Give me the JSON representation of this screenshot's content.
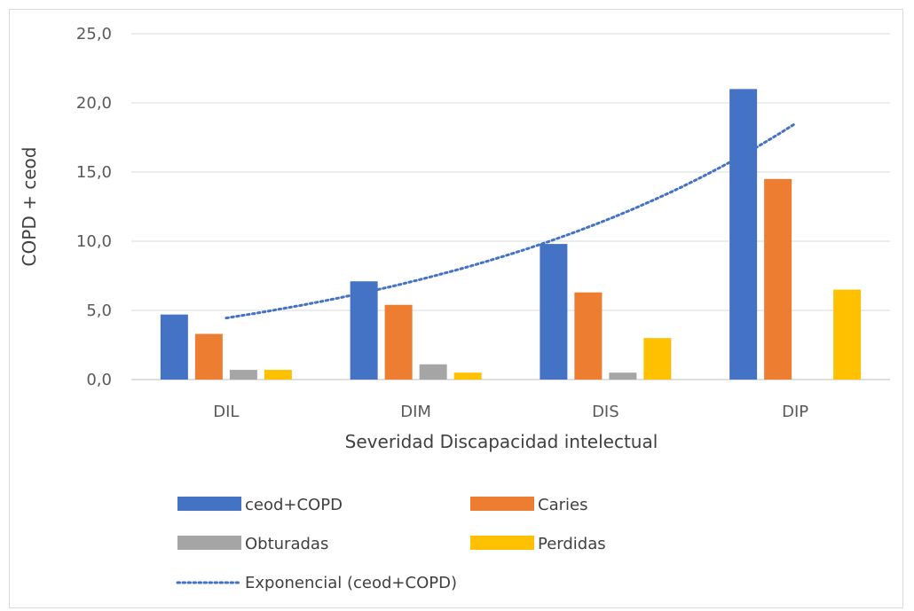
{
  "chart_data": {
    "type": "bar",
    "xlabel": "Severidad Discapacidad intelectual",
    "ylabel": "COPD + ceod",
    "ylim": [
      0,
      25
    ],
    "yticks": [
      "0,0",
      "5,0",
      "10,0",
      "15,0",
      "20,0",
      "25,0"
    ],
    "categories": [
      "DIL",
      "DIM",
      "DIS",
      "DIP"
    ],
    "grid": true,
    "legend_position": "bottom",
    "series": [
      {
        "name": "ceod+COPD",
        "color": "#4472c4",
        "values": [
          4.7,
          7.1,
          9.8,
          21.0
        ]
      },
      {
        "name": "Caries",
        "color": "#ed7d31",
        "values": [
          3.3,
          5.4,
          6.3,
          14.5
        ]
      },
      {
        "name": "Obturadas",
        "color": "#a5a5a5",
        "values": [
          0.7,
          1.1,
          0.5,
          0.0
        ]
      },
      {
        "name": "Perdidas",
        "color": "#ffc000",
        "values": [
          0.7,
          0.5,
          3.0,
          6.5
        ]
      }
    ],
    "trendline": {
      "name": "Exponencial (ceod+COPD)",
      "type": "exponential",
      "color": "#4472c4",
      "values": [
        4.45,
        6.55,
        11.6,
        18.5
      ]
    }
  }
}
